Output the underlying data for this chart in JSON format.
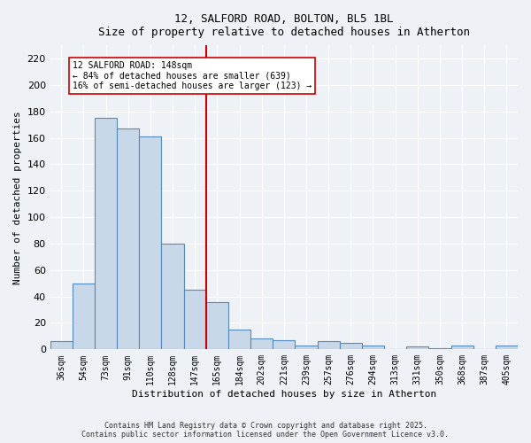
{
  "title1": "12, SALFORD ROAD, BOLTON, BL5 1BL",
  "title2": "Size of property relative to detached houses in Atherton",
  "xlabel": "Distribution of detached houses by size in Atherton",
  "ylabel": "Number of detached properties",
  "categories": [
    "36sqm",
    "54sqm",
    "73sqm",
    "91sqm",
    "110sqm",
    "128sqm",
    "147sqm",
    "165sqm",
    "184sqm",
    "202sqm",
    "221sqm",
    "239sqm",
    "257sqm",
    "276sqm",
    "294sqm",
    "313sqm",
    "331sqm",
    "350sqm",
    "368sqm",
    "387sqm",
    "405sqm"
  ],
  "values": [
    6,
    50,
    175,
    167,
    161,
    80,
    45,
    36,
    15,
    8,
    7,
    3,
    6,
    5,
    3,
    0,
    2,
    1,
    3,
    0,
    3
  ],
  "bar_color": "#c8d8e8",
  "bar_edge_color": "#5588bb",
  "vline_x": 6.5,
  "vline_color": "#cc0000",
  "annotation_line1": "12 SALFORD ROAD: 148sqm",
  "annotation_line2": "← 84% of detached houses are smaller (639)",
  "annotation_line3": "16% of semi-detached houses are larger (123) →",
  "annotation_box_color": "#cc0000",
  "ylim": [
    0,
    230
  ],
  "yticks": [
    0,
    20,
    40,
    60,
    80,
    100,
    120,
    140,
    160,
    180,
    200,
    220
  ],
  "footer1": "Contains HM Land Registry data © Crown copyright and database right 2025.",
  "footer2": "Contains public sector information licensed under the Open Government Licence v3.0.",
  "bg_color": "#eef2f7",
  "plot_bg_color": "#eef2f7"
}
